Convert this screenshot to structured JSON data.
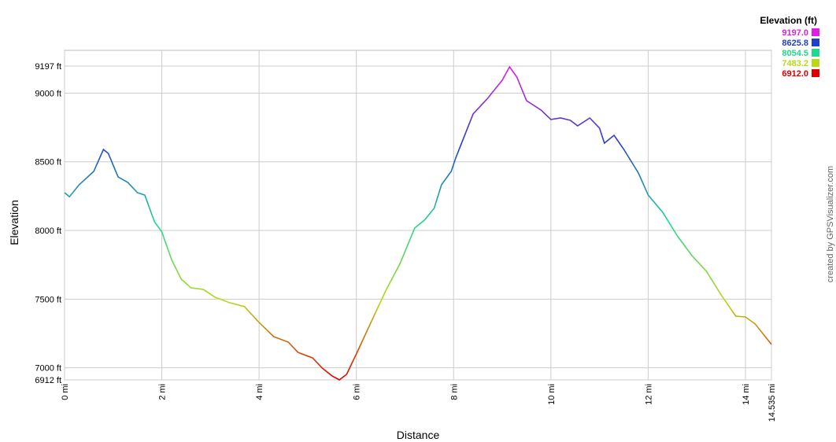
{
  "chart_data": {
    "type": "line",
    "xlabel": "Distance",
    "ylabel": "Elevation",
    "credit": "created by GPSVisualizer.com",
    "legend_title": "Elevation (ft)",
    "color_scale": [
      {
        "value": 9197.0,
        "label": "9197.0",
        "color": "#e020e0"
      },
      {
        "value": 8625.8,
        "label": "8625.8",
        "color": "#2040d0"
      },
      {
        "value": 8054.5,
        "label": "8054.5",
        "color": "#20d890"
      },
      {
        "value": 7483.2,
        "label": "7483.2",
        "color": "#b8d818"
      },
      {
        "value": 6912.0,
        "label": "6912.0",
        "color": "#e00000"
      }
    ],
    "xlim": [
      0,
      14.535
    ],
    "xticks": [
      {
        "value": 0,
        "label": "0 mi"
      },
      {
        "value": 2,
        "label": "2 mi"
      },
      {
        "value": 4,
        "label": "4 mi"
      },
      {
        "value": 6,
        "label": "6 mi"
      },
      {
        "value": 8,
        "label": "8 mi"
      },
      {
        "value": 10,
        "label": "10 mi"
      },
      {
        "value": 12,
        "label": "12 mi"
      },
      {
        "value": 14,
        "label": "14 mi"
      },
      {
        "value": 14.535,
        "label": "14.535 mi"
      }
    ],
    "ylim": [
      6912,
      9197
    ],
    "yticks": [
      {
        "value": 6912,
        "label": "6912 ft"
      },
      {
        "value": 7000,
        "label": "7000 ft"
      },
      {
        "value": 7500,
        "label": "7500 ft"
      },
      {
        "value": 8000,
        "label": "8000 ft"
      },
      {
        "value": 8500,
        "label": "8500 ft"
      },
      {
        "value": 9000,
        "label": "9000 ft"
      },
      {
        "value": 9197,
        "label": "9197 ft"
      }
    ],
    "grid": true,
    "x": [
      0,
      0.1,
      0.3,
      0.6,
      0.8,
      0.9,
      1.1,
      1.3,
      1.5,
      1.65,
      1.85,
      2.0,
      2.2,
      2.4,
      2.6,
      2.85,
      3.1,
      3.4,
      3.7,
      4.0,
      4.3,
      4.6,
      4.8,
      5.1,
      5.3,
      5.5,
      5.65,
      5.8,
      6.0,
      6.3,
      6.6,
      6.9,
      7.2,
      7.4,
      7.6,
      7.75,
      7.95,
      8.05,
      8.4,
      8.7,
      9.0,
      9.15,
      9.3,
      9.5,
      9.8,
      10.0,
      10.2,
      10.4,
      10.55,
      10.8,
      11.0,
      11.1,
      11.3,
      11.5,
      11.8,
      12.0,
      12.3,
      12.6,
      12.9,
      13.2,
      13.5,
      13.8,
      14.0,
      14.2,
      14.535
    ],
    "values": [
      8275,
      8246,
      8332,
      8430,
      8590,
      8561,
      8390,
      8350,
      8275,
      8258,
      8063,
      7989,
      7788,
      7645,
      7582,
      7571,
      7513,
      7473,
      7445,
      7330,
      7227,
      7187,
      7112,
      7072,
      6998,
      6941,
      6912,
      6952,
      7101,
      7330,
      7559,
      7760,
      8017,
      8075,
      8161,
      8332,
      8430,
      8533,
      8848,
      8962,
      9094,
      9191,
      9117,
      8945,
      8876,
      8808,
      8819,
      8802,
      8762,
      8819,
      8745,
      8636,
      8693,
      8590,
      8418,
      8258,
      8132,
      7960,
      7817,
      7702,
      7531,
      7376,
      7370,
      7319,
      7170
    ]
  }
}
